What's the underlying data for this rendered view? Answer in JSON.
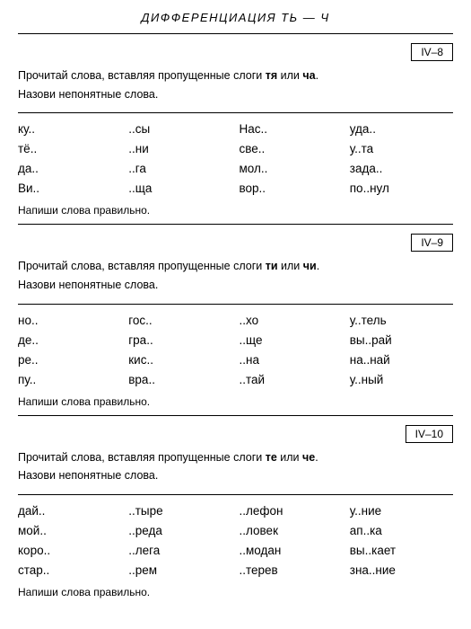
{
  "header": "ДИФФЕРЕНЦИАЦИЯ   ТЬ — Ч",
  "sections": [
    {
      "badge": "IV–8",
      "instr_pre": "Прочитай слова, вставляя пропущенные слоги ",
      "b1": "тя",
      "mid": " или ",
      "b2": "ча",
      "instr_post": ".",
      "instr2": "Назови непонятные слова.",
      "cells": [
        "ку..",
        "..сы",
        "Нас..",
        "уда..",
        "тё..",
        "..ни",
        "све..",
        "у..та",
        "да..",
        "..га",
        "мол..",
        "зада..",
        "Ви..",
        "..ща",
        "вор..",
        "по..нул"
      ],
      "note": "Напиши слова правильно."
    },
    {
      "badge": "IV–9",
      "instr_pre": "Прочитай слова, вставляя пропущенные слоги ",
      "b1": "ти",
      "mid": " или ",
      "b2": "чи",
      "instr_post": ".",
      "instr2": "Назови непонятные слова.",
      "cells": [
        "но..",
        "гос..",
        "..хо",
        "у..тель",
        "де..",
        "гра..",
        "..ще",
        "вы..рай",
        "ре..",
        "кис..",
        "..на",
        "на..най",
        "пу..",
        "вра..",
        "..тай",
        "у..ный"
      ],
      "note": "Напиши слова правильно."
    },
    {
      "badge": "IV–10",
      "instr_pre": "Прочитай слова, вставляя пропущенные слоги ",
      "b1": "те",
      "mid": " или ",
      "b2": "че",
      "instr_post": ".",
      "instr2": "Назови непонятные слова.",
      "cells": [
        "дай..",
        "..тыре",
        "..лефон",
        "у..ние",
        "мой..",
        "..реда",
        "..ловек",
        "ап..ка",
        "коро..",
        "..лега",
        "..модан",
        "вы..кает",
        "стар..",
        "..рем",
        "..терев",
        "зна..ние"
      ],
      "note": "Напиши слова правильно."
    }
  ]
}
